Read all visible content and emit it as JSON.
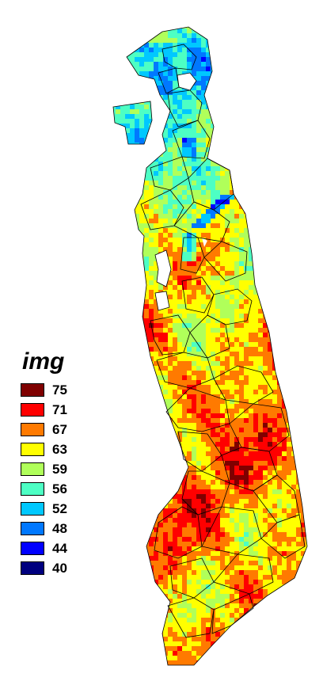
{
  "legend": {
    "title": "img",
    "classes": [
      {
        "label": "75",
        "color": "#7f0000"
      },
      {
        "label": "71",
        "color": "#ff0000"
      },
      {
        "label": "67",
        "color": "#ff7a00"
      },
      {
        "label": "63",
        "color": "#ffff00"
      },
      {
        "label": "59",
        "color": "#b0ff5a"
      },
      {
        "label": "56",
        "color": "#4dffc4"
      },
      {
        "label": "52",
        "color": "#00c8ff"
      },
      {
        "label": "48",
        "color": "#0078ff"
      },
      {
        "label": "44",
        "color": "#0000ff"
      },
      {
        "label": "40",
        "color": "#00007f"
      }
    ]
  },
  "map": {
    "background": "#ffffff",
    "boundary_color": "#000000"
  }
}
